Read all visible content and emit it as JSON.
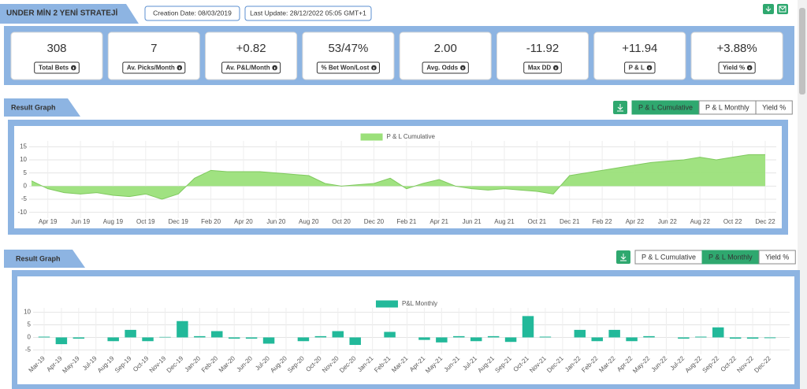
{
  "header": {
    "title": "UNDER MİN 2 YENİ STRATEJİ",
    "creation_date": "Creation Date: 08/03/2019",
    "last_update": "Last Update: 28/12/2022 05:05 GMT+1"
  },
  "stats": [
    {
      "value": "308",
      "label": "Total Bets",
      "color": "#222222"
    },
    {
      "value": "7",
      "label": "Av. Picks/Month",
      "color": "#222222"
    },
    {
      "value": "+0.82",
      "label": "Av. P&L/Month",
      "color": "#3c8a3c"
    },
    {
      "value": "53/47%",
      "label": "% Bet Won/Lost",
      "color": "#222222"
    },
    {
      "value": "2.00",
      "label": "Avg. Odds",
      "color": "#222222"
    },
    {
      "value": "-11.92",
      "label": "Max DD",
      "color": "#c0141c"
    },
    {
      "value": "+11.94",
      "label": "P & L",
      "color": "#3c8a3c"
    },
    {
      "value": "+3.88%",
      "label": "Yield %",
      "color": "#3c8a3c"
    }
  ],
  "chart_data": [
    {
      "type": "area",
      "title": "Result Graph",
      "buttons": [
        "P & L Cumulative",
        "P & L Monthly",
        "Yield %"
      ],
      "active_button": 0,
      "categories": [
        null,
        "Apr 19",
        null,
        "Jun 19",
        null,
        "Aug 19",
        null,
        "Oct 19",
        null,
        "Dec 19",
        null,
        "Feb 20",
        null,
        "Apr 20",
        null,
        "Jun 20",
        null,
        "Aug 20",
        null,
        "Oct 20",
        null,
        "Dec 20",
        null,
        "Feb 21",
        null,
        "Apr 21",
        null,
        "Jun 21",
        null,
        "Aug 21",
        null,
        "Oct 21",
        null,
        "Dec 21",
        null,
        "Feb 22",
        null,
        "Apr 22",
        null,
        "Jun 22",
        null,
        "Aug 22",
        null,
        "Oct 22",
        null,
        "Dec 22"
      ],
      "series": [
        {
          "name": "P & L Cumulative",
          "color": "#9be07a",
          "values": [
            2,
            -1,
            -2.5,
            -3,
            -2.5,
            -3.5,
            -4,
            -3,
            -5,
            -3,
            3,
            6,
            5.5,
            5.5,
            5.5,
            5,
            4.5,
            4,
            1,
            0,
            0.5,
            1,
            3,
            -1,
            1,
            2.5,
            0,
            -1,
            -1.5,
            -1,
            -1.5,
            -2,
            -3,
            4,
            5,
            6,
            7,
            8,
            9,
            9.5,
            10,
            11,
            10,
            11,
            12,
            12
          ]
        }
      ],
      "ylim": [
        -11,
        16
      ],
      "yticks": [
        -10,
        -5,
        0,
        5,
        10,
        15
      ],
      "grid": true
    },
    {
      "type": "bar",
      "title": "Result Graph",
      "buttons": [
        "P & L Cumulative",
        "P & L Monthly",
        "Yield %"
      ],
      "active_button": 1,
      "categories": [
        "Mar-19",
        "Apr-19",
        "May-19",
        "Jul-19",
        "Aug-19",
        "Sep-19",
        "Oct-19",
        "Nov-19",
        "Dec-19",
        "Jan-20",
        "Feb-20",
        "Mar-20",
        "Jun-20",
        "Jul-20",
        "Aug-20",
        "Sep-20",
        "Oct-20",
        "Nov-20",
        "Dec-20",
        "Jan-21",
        "Feb-21",
        "Mar-21",
        "Apr-21",
        "May-21",
        "Jun-21",
        "Jul-21",
        "Aug-21",
        "Sep-21",
        "Oct-21",
        "Nov-21",
        "Dec-21",
        "Jan-22",
        "Feb-22",
        "Mar-22",
        "Apr-22",
        "May-22",
        "Jun-22",
        "Jul-22",
        "Aug-22",
        "Sep-22",
        "Oct-22",
        "Nov-22",
        "Dec-22"
      ],
      "series": [
        {
          "name": "P&L Monthly",
          "color": "#22b99a",
          "values": [
            0.3,
            -2.7,
            -0.5,
            0,
            -1.5,
            3,
            -1.5,
            0.2,
            6.5,
            0.5,
            2.5,
            -0.5,
            -0.5,
            -2.5,
            0,
            -1.5,
            0.5,
            2.5,
            -3,
            0,
            2.2,
            0,
            -1,
            -2,
            0.5,
            -1.5,
            0.5,
            -1.8,
            8.5,
            0.3,
            0,
            3,
            -1.5,
            3,
            -1.5,
            0.5,
            0,
            -0.5,
            0.3,
            4,
            -0.5,
            -0.5,
            -0.3
          ]
        }
      ],
      "ylim": [
        -5.5,
        10.5
      ],
      "yticks": [
        -5,
        0,
        5,
        10
      ],
      "grid": true
    }
  ]
}
